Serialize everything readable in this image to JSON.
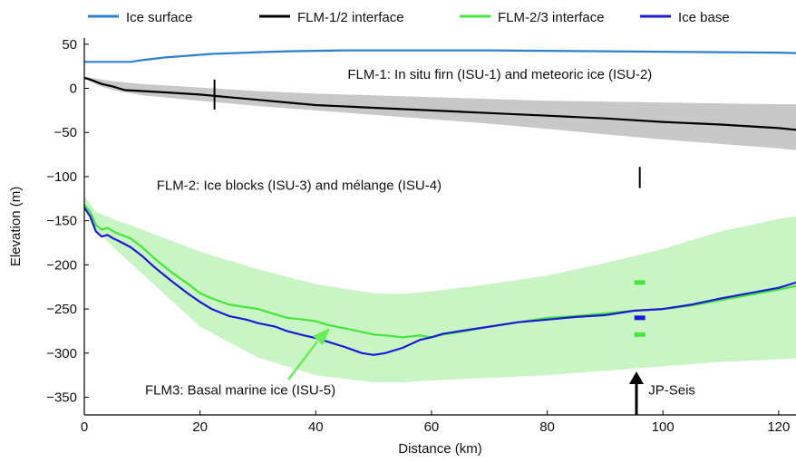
{
  "chart_data": {
    "type": "line",
    "xlabel": "Distance (km)",
    "ylabel": "Elevation (m)",
    "xlim": [
      0,
      123
    ],
    "ylim": [
      -370,
      57
    ],
    "xticks": [
      0,
      20,
      40,
      60,
      80,
      100,
      120
    ],
    "yticks": [
      50,
      0,
      -50,
      -100,
      -150,
      -200,
      -250,
      -300,
      -350
    ],
    "grid": false,
    "legend_position": "top",
    "series": [
      {
        "name": "Ice surface",
        "color": "#2e7fcf",
        "x": [
          0,
          2,
          4,
          6,
          8,
          10,
          14,
          18,
          22,
          26,
          30,
          35,
          40,
          45,
          50,
          60,
          70,
          80,
          90,
          100,
          110,
          120,
          123
        ],
        "y": [
          30,
          30,
          30,
          30,
          30,
          32,
          35,
          37,
          39,
          40,
          41,
          42,
          42.5,
          43,
          43,
          43,
          43,
          42.5,
          42,
          41.5,
          41,
          40.5,
          40
        ]
      },
      {
        "name": "FLM-1/2 interface",
        "color": "#000000",
        "x": [
          0,
          1,
          3,
          5,
          7,
          10,
          15,
          20,
          25,
          30,
          35,
          40,
          50,
          60,
          70,
          80,
          90,
          100,
          110,
          120,
          123
        ],
        "y": [
          12,
          10,
          5,
          2,
          -2,
          -3,
          -5,
          -7,
          -10,
          -13,
          -16,
          -19,
          -22,
          -25,
          -28,
          -31,
          -34,
          -38,
          -41,
          -45,
          -47
        ]
      },
      {
        "name": "FLM-2/3 interface",
        "color": "#44e63a",
        "x": [
          0,
          1,
          2,
          3,
          4,
          5,
          6,
          8,
          10,
          12,
          15,
          18,
          20,
          22,
          25,
          28,
          30,
          33,
          35,
          38,
          40,
          42,
          45,
          48,
          50,
          52,
          55,
          58,
          60,
          62,
          65,
          70,
          75,
          80,
          85,
          90,
          95,
          100,
          105,
          110,
          115,
          120,
          123
        ],
        "y": [
          -132,
          -140,
          -155,
          -160,
          -158,
          -162,
          -165,
          -170,
          -180,
          -192,
          -208,
          -222,
          -232,
          -238,
          -245,
          -248,
          -250,
          -256,
          -260,
          -262,
          -264,
          -268,
          -272,
          -276,
          -279,
          -280,
          -282,
          -280,
          -282,
          -279,
          -276,
          -270,
          -265,
          -260,
          -258,
          -255,
          -252,
          -250,
          -246,
          -240,
          -234,
          -228,
          -224
        ]
      },
      {
        "name": "Ice base",
        "color": "#1a1ad6",
        "x": [
          0,
          1,
          2,
          3,
          4,
          5,
          6,
          8,
          10,
          12,
          15,
          18,
          20,
          22,
          25,
          28,
          30,
          33,
          35,
          38,
          40,
          42,
          45,
          48,
          50,
          52,
          55,
          58,
          60,
          62,
          65,
          70,
          75,
          80,
          85,
          90,
          95,
          100,
          105,
          110,
          115,
          120,
          123
        ],
        "y": [
          -135,
          -145,
          -162,
          -168,
          -166,
          -170,
          -173,
          -180,
          -190,
          -202,
          -218,
          -233,
          -242,
          -250,
          -258,
          -262,
          -266,
          -270,
          -275,
          -280,
          -283,
          -287,
          -293,
          -300,
          -302,
          -300,
          -294,
          -285,
          -282,
          -278,
          -275,
          -270,
          -265,
          -262,
          -259,
          -257,
          -252,
          -250,
          -245,
          -238,
          -232,
          -226,
          -220
        ]
      }
    ],
    "uncertainty_bands": [
      {
        "around": "FLM-1/2 interface",
        "color": "#c8c8c8",
        "x": [
          0,
          3,
          5,
          10,
          20,
          30,
          40,
          50,
          60,
          70,
          80,
          90,
          100,
          110,
          120,
          123
        ],
        "upper": [
          13,
          10,
          8,
          5,
          1,
          -3,
          -6,
          -8,
          -10,
          -12,
          -14,
          -15,
          -16,
          -17,
          -18,
          -18
        ],
        "lower": [
          11,
          2,
          -2,
          -8,
          -14,
          -20,
          -25,
          -30,
          -35,
          -40,
          -46,
          -52,
          -58,
          -63,
          -68,
          -70
        ]
      },
      {
        "around": "FLM-2/3 interface",
        "color": "#c9f5c4",
        "x": [
          0,
          2,
          5,
          10,
          20,
          30,
          40,
          50,
          55,
          60,
          70,
          80,
          90,
          100,
          110,
          120,
          123
        ],
        "upper": [
          -122,
          -140,
          -148,
          -160,
          -185,
          -205,
          -222,
          -232,
          -233,
          -230,
          -222,
          -212,
          -198,
          -182,
          -162,
          -148,
          -145
        ],
        "lower": [
          -130,
          -160,
          -180,
          -210,
          -270,
          -305,
          -325,
          -333,
          -333,
          -331,
          -328,
          -325,
          -320,
          -315,
          -310,
          -307,
          -306
        ]
      }
    ],
    "markers": [
      {
        "type": "vline",
        "color": "#000000",
        "x": 22.5,
        "y0": -24,
        "y1": 10
      },
      {
        "type": "vline",
        "color": "#000000",
        "x": 96,
        "y0": -113,
        "y1": -89
      },
      {
        "type": "hdash",
        "color": "#44e63a",
        "x": 96,
        "y": -220
      },
      {
        "type": "hdash",
        "color": "#1a1ad6",
        "x": 96,
        "y": -260
      },
      {
        "type": "hdash",
        "color": "#44e63a",
        "x": 96,
        "y": -279
      }
    ],
    "annotations": [
      {
        "text": "FLM-1: In situ firn (ISU-1) and meteoric ice (ISU-2)",
        "x": 45.5,
        "y": 16
      },
      {
        "text": "FLM-2: Ice blocks (ISU-3) and mélange (ISU-4)",
        "x": 12.5,
        "y": -110
      },
      {
        "text": "FLM3: Basal marine ice (ISU-5)",
        "x": 10.5,
        "y": -342
      },
      {
        "text": "JP-Seis",
        "x": 97.5,
        "y": -342
      }
    ]
  }
}
